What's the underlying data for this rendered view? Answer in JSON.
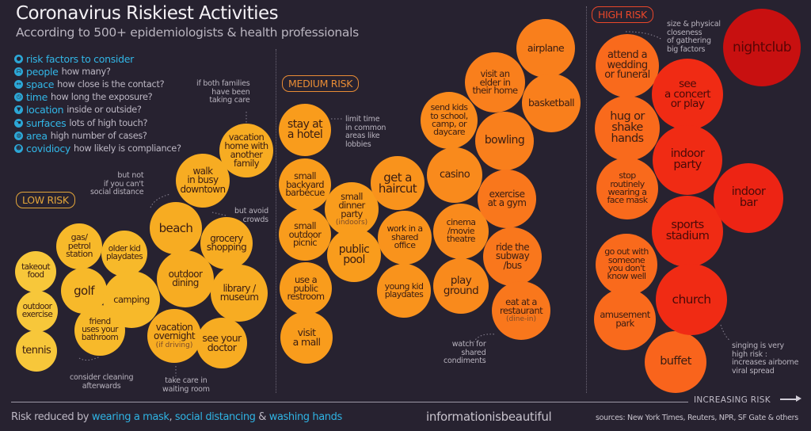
{
  "header": {
    "title": "Coronavirus Riskiest Activities",
    "subtitle": "According to 500+ epidemiologists & health professionals"
  },
  "risk_factors": [
    {
      "icon": "head-icon",
      "glyph": "●",
      "key": "risk factors to consider",
      "desc": ""
    },
    {
      "icon": "people-icon",
      "glyph": "ᗣ",
      "key": "people",
      "desc": "how many?"
    },
    {
      "icon": "space-icon",
      "glyph": "↔",
      "key": "space",
      "desc": "how close is the contact?"
    },
    {
      "icon": "clock-icon",
      "glyph": "◷",
      "key": "time",
      "desc": "how long the exposure?"
    },
    {
      "icon": "location-icon",
      "glyph": "▼",
      "key": "location",
      "desc": "inside or outside?"
    },
    {
      "icon": "hand-icon",
      "glyph": "☚",
      "key": "surfaces",
      "desc": "lots of high touch?"
    },
    {
      "icon": "globe-icon",
      "glyph": "◍",
      "key": "area",
      "desc": "high number of cases?"
    },
    {
      "icon": "face-icon",
      "glyph": "☻",
      "key": "covidiocy",
      "desc": "how likely is compliance?"
    }
  ],
  "badges": {
    "low": {
      "label": "LOW RISK",
      "color": "#e2a53a"
    },
    "medium": {
      "label": "MEDIUM RISK",
      "color": "#e88c35"
    },
    "high": {
      "label": "HIGH RISK",
      "color": "#e9472a"
    }
  },
  "chart_data": {
    "type": "bubble",
    "title": "Coronavirus Riskiest Activities",
    "xlabel": "INCREASING RISK",
    "categories": [
      "LOW RISK",
      "MEDIUM RISK",
      "HIGH RISK"
    ],
    "series": [
      {
        "name": "LOW RISK",
        "items": [
          {
            "label": [
              "takeout",
              "food"
            ],
            "color": "#f7c73a"
          },
          {
            "label": [
              "outdoor",
              "exercise"
            ],
            "color": "#f7c73a"
          },
          {
            "label": [
              "tennis"
            ],
            "color": "#f7c73a"
          },
          {
            "label": [
              "gas/",
              "petrol",
              "station"
            ],
            "color": "#f7b92a"
          },
          {
            "label": [
              "golf"
            ],
            "color": "#f7b92a"
          },
          {
            "label": [
              "older kid",
              "playdates"
            ],
            "color": "#f7b92a"
          },
          {
            "label": [
              "camping"
            ],
            "color": "#f7b92a"
          },
          {
            "label": [
              "friend",
              "uses your",
              "bathroom"
            ],
            "color": "#f7b92a"
          },
          {
            "label": [
              "beach"
            ],
            "color": "#f7ac22"
          },
          {
            "label": [
              "grocery",
              "shopping"
            ],
            "color": "#f7ac22"
          },
          {
            "label": [
              "outdoor",
              "dining"
            ],
            "color": "#f7ac22"
          },
          {
            "label": [
              "library /",
              "museum"
            ],
            "color": "#f7ac22"
          },
          {
            "label": [
              "vacation",
              "overnight"
            ],
            "sub": "(if driving)",
            "color": "#f7ac22"
          },
          {
            "label": [
              "see your",
              "doctor"
            ],
            "color": "#f7ac22"
          },
          {
            "label": [
              "walk",
              "in busy",
              "downtown"
            ],
            "color": "#f7ac22"
          },
          {
            "label": [
              "vacation",
              "home with",
              "another",
              "family"
            ],
            "color": "#f7ac22"
          }
        ]
      },
      {
        "name": "MEDIUM RISK",
        "items": [
          {
            "label": [
              "stay at",
              "a hotel"
            ],
            "color": "#f99c1c"
          },
          {
            "label": [
              "small",
              "backyard",
              "barbecue"
            ],
            "color": "#f99c1c"
          },
          {
            "label": [
              "small",
              "outdoor",
              "picnic"
            ],
            "color": "#f99c1c"
          },
          {
            "label": [
              "use a",
              "public",
              "restroom"
            ],
            "color": "#f99c1c"
          },
          {
            "label": [
              "visit",
              "a mall"
            ],
            "color": "#f99c1c"
          },
          {
            "label": [
              "small",
              "dinner",
              "party"
            ],
            "sub": "(indoors)",
            "color": "#f99c1c"
          },
          {
            "label": [
              "public",
              "pool"
            ],
            "color": "#f99c1c"
          },
          {
            "label": [
              "get a",
              "haircut"
            ],
            "color": "#f9931c"
          },
          {
            "label": [
              "work in a",
              "shared",
              "office"
            ],
            "color": "#f9931c"
          },
          {
            "label": [
              "young kid",
              "playdates"
            ],
            "color": "#f9931c"
          },
          {
            "label": [
              "casino"
            ],
            "color": "#f98a1c"
          },
          {
            "label": [
              "cinema",
              "/movie",
              "theatre"
            ],
            "color": "#f98a1c"
          },
          {
            "label": [
              "play",
              "ground"
            ],
            "color": "#f98a1c"
          },
          {
            "label": [
              "send kids",
              "to school,",
              "camp, or",
              "daycare"
            ],
            "color": "#f98a1c"
          },
          {
            "label": [
              "visit an",
              "elder in",
              "their home"
            ],
            "color": "#f97f1c"
          },
          {
            "label": [
              "airplane"
            ],
            "color": "#f97f1c"
          },
          {
            "label": [
              "basketball"
            ],
            "color": "#f97f1c"
          },
          {
            "label": [
              "bowling"
            ],
            "color": "#f97f1c"
          },
          {
            "label": [
              "exercise",
              "at a gym"
            ],
            "color": "#f9771c"
          },
          {
            "label": [
              "ride the",
              "subway",
              "/bus"
            ],
            "color": "#f9771c"
          },
          {
            "label": [
              "eat at a",
              "restaurant"
            ],
            "sub": "(dine-in)",
            "color": "#f9771c"
          }
        ]
      },
      {
        "name": "HIGH RISK",
        "items": [
          {
            "label": [
              "attend a",
              "wedding",
              "or funeral"
            ],
            "color": "#f96a1c"
          },
          {
            "label": [
              "hug or",
              "shake",
              "hands"
            ],
            "color": "#f96a1c"
          },
          {
            "label": [
              "stop",
              "routinely",
              "wearing a",
              "face mask"
            ],
            "color": "#f96a1c"
          },
          {
            "label": [
              "go out with",
              "someone",
              "you don't",
              "know well"
            ],
            "color": "#f96a1c"
          },
          {
            "label": [
              "amusement",
              "park"
            ],
            "color": "#f96a1c"
          },
          {
            "label": [
              "buffet"
            ],
            "color": "#f9641c"
          },
          {
            "label": [
              "see",
              "a concert",
              "or play"
            ],
            "color": "#f02b14"
          },
          {
            "label": [
              "indoor",
              "party"
            ],
            "color": "#f02b14"
          },
          {
            "label": [
              "sports",
              "stadium"
            ],
            "color": "#f02b14"
          },
          {
            "label": [
              "church"
            ],
            "color": "#f02b14"
          },
          {
            "label": [
              "indoor",
              "bar"
            ],
            "color": "#ed2414"
          },
          {
            "label": [
              "nightclub"
            ],
            "color": "#c81010"
          }
        ]
      }
    ]
  },
  "notes": {
    "both_families": [
      "if both families",
      "have been",
      "taking care"
    ],
    "but_not": [
      "but not",
      "if you can't",
      "social distance"
    ],
    "avoid_crowds": [
      "but avoid",
      "crowds"
    ],
    "cleaning": [
      "consider cleaning",
      "afterwards"
    ],
    "waiting_room": [
      "take care in",
      "waiting room"
    ],
    "lobbies": [
      "limit time",
      "in common",
      "areas like",
      "lobbies"
    ],
    "condiments": [
      "watch for",
      "shared",
      "condiments"
    ],
    "gathering": [
      "size & physical",
      "closeness",
      "of gathering",
      "big factors"
    ],
    "singing": [
      "singing is very",
      "high risk :",
      "increases airborne",
      "viral spread"
    ]
  },
  "axis": {
    "label": "INCREASING RISK"
  },
  "footer": {
    "prefix": "Risk reduced by ",
    "mask": "wearing a mask",
    "sep1": ", ",
    "distancing": "social distancing",
    "sep2": " & ",
    "hands": "washing hands",
    "brand": "informationisbeautiful",
    "sources": "sources: New York Times, Reuters, NPR, SF Gate & others"
  }
}
